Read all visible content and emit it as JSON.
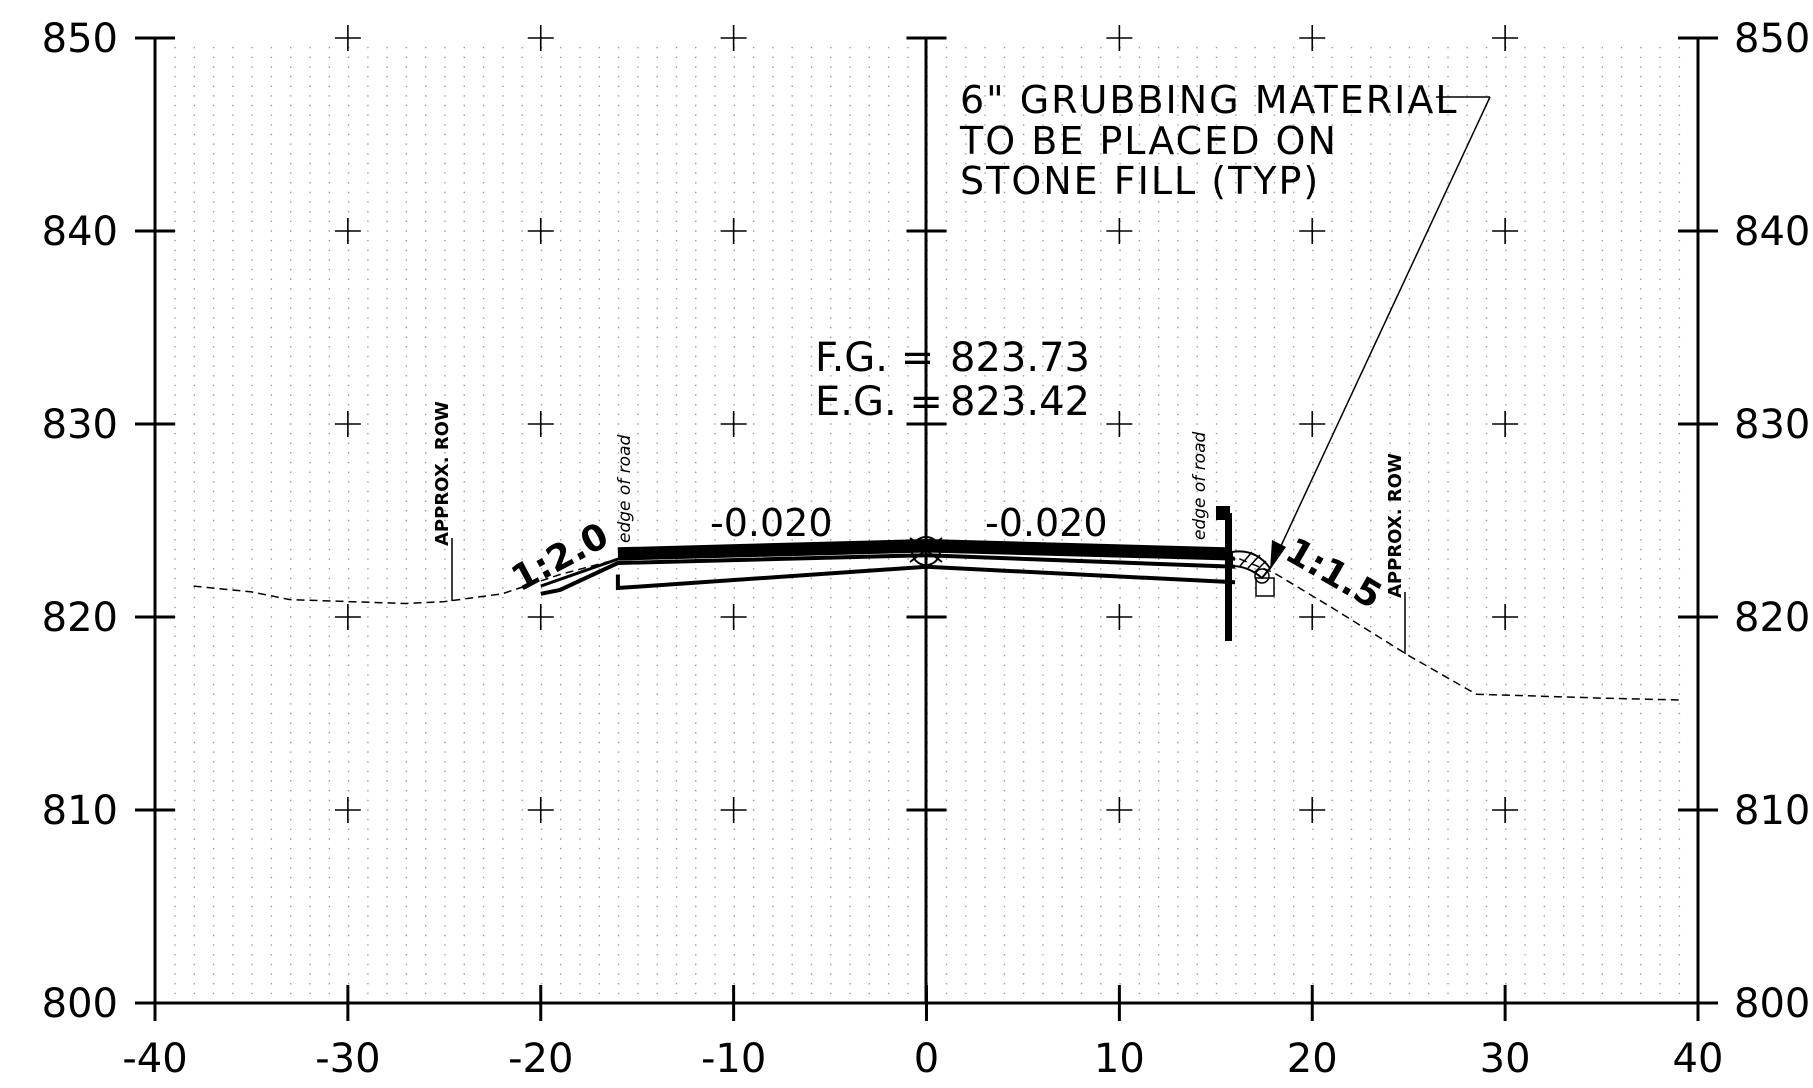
{
  "x_axis": {
    "min": -40,
    "max": 40,
    "step": 10,
    "labels": [
      "-40",
      "-30",
      "-20",
      "-10",
      "0",
      "10",
      "20",
      "30",
      "40"
    ]
  },
  "y_axis": {
    "min": 800,
    "max": 850,
    "step": 10,
    "labels": [
      "800",
      "810",
      "820",
      "830",
      "840",
      "850"
    ]
  },
  "grid": "dotted",
  "note": {
    "lines": [
      "6\" GRUBBING MATERIAL",
      "TO BE PLACED ON",
      "STONE FILL (TYP)"
    ]
  },
  "grade": {
    "fg_label": "F.G. =",
    "fg_value": "823.73",
    "eg_label": "E.G. =",
    "eg_value": "823.42"
  },
  "slopes": {
    "left": "-0.020",
    "right": "-0.020"
  },
  "side_slopes": {
    "left": "1:2.0",
    "right": "1:1.5"
  },
  "row_label": "APPROX. ROW",
  "edge_label": "edge of road",
  "existing_ground": [
    [
      -38,
      821.6
    ],
    [
      -35,
      821.3
    ],
    [
      -33,
      820.9
    ],
    [
      -27,
      820.7
    ],
    [
      -25,
      820.8
    ],
    [
      -22,
      821.2
    ],
    [
      -19,
      822.2
    ],
    [
      -16,
      823.0
    ],
    [
      0,
      823.42
    ],
    [
      16,
      823.1
    ],
    [
      18,
      822.3
    ],
    [
      21,
      820.5
    ],
    [
      25,
      818.0
    ],
    [
      28.5,
      816.0
    ],
    [
      35,
      815.8
    ],
    [
      39,
      815.7
    ]
  ],
  "finished_grade": [
    [
      -16,
      823.3
    ],
    [
      0,
      823.73
    ],
    [
      15.5,
      823.3
    ]
  ],
  "section_layers": [
    [
      [
        -20,
        821.2
      ],
      [
        -19,
        821.4
      ],
      [
        -16,
        822.8
      ],
      [
        0,
        823.2
      ],
      [
        16,
        822.6
      ]
    ],
    [
      [
        -20,
        821.6
      ],
      [
        -16,
        823.0
      ],
      [
        0,
        823.42
      ],
      [
        16,
        823.0
      ]
    ],
    [
      [
        -16,
        822.2
      ],
      [
        -16,
        821.5
      ],
      [
        0,
        822.6
      ],
      [
        16,
        821.8
      ]
    ]
  ],
  "colors": {
    "ink": "#000000",
    "grid": "#9a9a9a"
  }
}
